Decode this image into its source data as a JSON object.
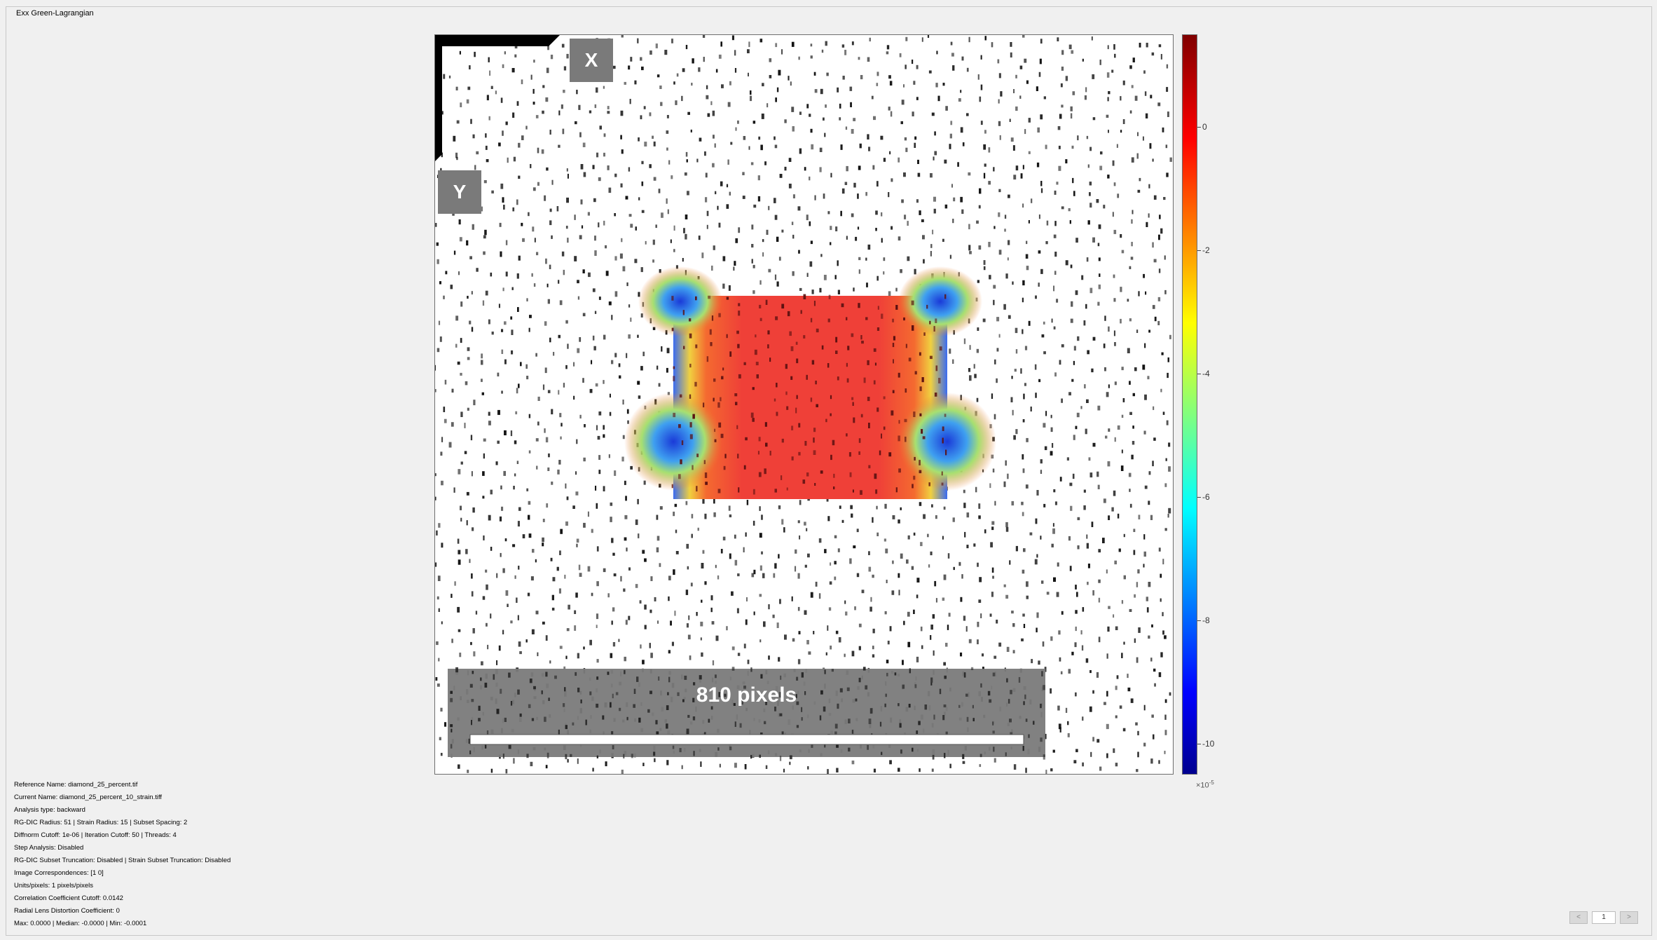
{
  "panel": {
    "title": "Exx Green-Lagrangian"
  },
  "figure": {
    "x_axis_label": "X",
    "y_axis_label": "Y",
    "scalebar_label": "810 pixels",
    "colors": {
      "overlay_box": "#7a7a7a",
      "speckle": "#111111",
      "background": "#ffffff"
    }
  },
  "colorbar": {
    "colormap": "jet",
    "range": [
      -10.5,
      1.5
    ],
    "ticks": [
      "0",
      "-2",
      "-4",
      "-6",
      "-8",
      "-10"
    ],
    "tick_values": [
      0,
      -2,
      -4,
      -6,
      -8,
      -10
    ],
    "exponent_base": "×10",
    "exponent_power": "-5"
  },
  "info": {
    "reference_name": "Reference Name: diamond_25_percent.tif",
    "current_name": "Current Name: diamond_25_percent_10_strain.tiff",
    "analysis_type": "Analysis type: backward",
    "radii": "RG-DIC Radius: 51 | Strain Radius: 15 | Subset Spacing: 2",
    "cutoffs": "Diffnorm Cutoff: 1e-06 | Iteration Cutoff: 50 | Threads: 4",
    "step_analysis": "Step Analysis: Disabled",
    "truncation": "RG-DIC Subset Truncation: Disabled | Strain Subset Truncation: Disabled",
    "correspondences": "Image Correspondences: [1 0]",
    "units": "Units/pixels: 1 pixels/pixels",
    "correlation_cutoff": "Correlation Coefficient Cutoff: 0.0142",
    "lens_distortion": "Radial Lens Distortion Coefficient: 0",
    "stats": "Max: 0.0000 | Median: -0.0000 | Min: -0.0001"
  },
  "pager": {
    "prev": "<",
    "page": "1",
    "next": ">"
  }
}
